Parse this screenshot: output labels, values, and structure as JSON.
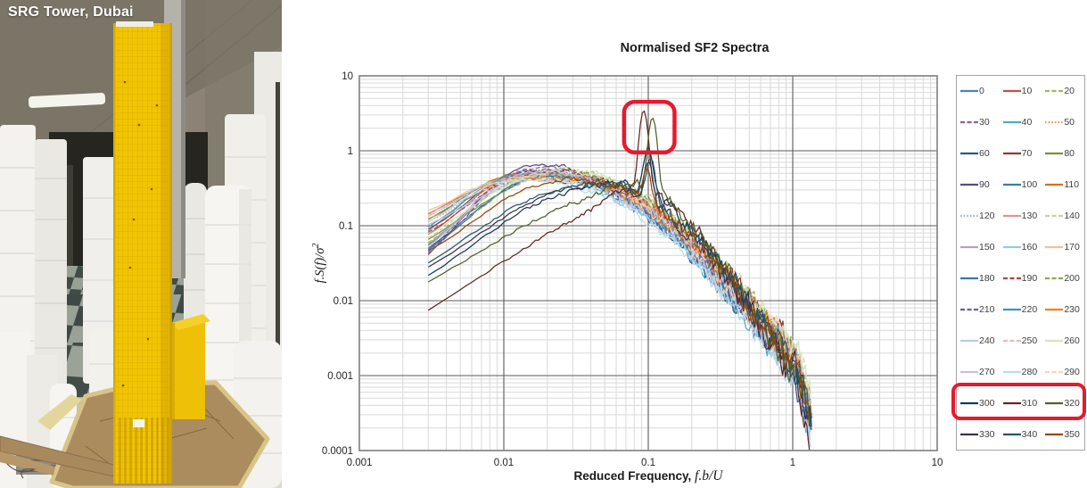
{
  "photo": {
    "caption": "SRG Tower, Dubai"
  },
  "chart": {
    "title": "Normalised SF2 Spectra",
    "xlabel_prefix": "Reduced Frequency, ",
    "xlabel_math": "f.b/U",
    "ylabel_math": "f.S(f)/σ",
    "ylabel_sup": "2"
  },
  "chart_data": {
    "type": "line",
    "title": "Normalised SF2 Spectra",
    "xlabel": "Reduced Frequency, f.b/U",
    "ylabel": "f.S(f)/σ2",
    "xscale": "log",
    "yscale": "log",
    "xlim": [
      0.001,
      10
    ],
    "ylim": [
      0.0001,
      10
    ],
    "x_ticks": [
      "0.001",
      "0.01",
      "0.1",
      "1",
      "10"
    ],
    "y_ticks": [
      "10",
      "1",
      "0.1",
      "0.01",
      "0.001",
      "0.0001"
    ],
    "grid": "log major+minor",
    "legend_position": "right, 3 columns, wind directions 0-350 deg in 10 deg steps",
    "description": "36 normalised force spectra curves; all rise from ~0.003 reduced frequency to a broad hump ~0.3-0.6 near 0.01-0.03, then decay noisily to ~0.0003-0.001 at ~1.3. Directions 310 and 320 show a sharp resonant peak near 0.1 (values ~3 and ~2.5), highlighted with a red box; legend row 300/310/320 also highlighted in red.",
    "annotations": [
      {
        "type": "box",
        "target": "spectral-peak",
        "x_range": [
          0.068,
          0.152
        ],
        "y_range": [
          0.95,
          4.5
        ],
        "color": "#e8192d"
      },
      {
        "type": "box",
        "target": "legend-row-300-310-320",
        "color": "#e8192d"
      }
    ],
    "series": [
      {
        "name": "0",
        "color": "#4F81BD",
        "dash": "solid",
        "start": [
          0.003,
          0.055
        ],
        "hump": [
          0.013,
          0.42
        ],
        "mid": [
          0.1,
          0.16
        ],
        "end": [
          1.28,
          0.0009
        ],
        "res": null
      },
      {
        "name": "10",
        "color": "#C0504D",
        "dash": "solid",
        "start": [
          0.003,
          0.075
        ],
        "hump": [
          0.012,
          0.46
        ],
        "mid": [
          0.1,
          0.18
        ],
        "end": [
          1.33,
          0.001
        ],
        "res": null
      },
      {
        "name": "20",
        "color": "#9BBB59",
        "dash": "dash",
        "start": [
          0.003,
          0.06
        ],
        "hump": [
          0.016,
          0.5
        ],
        "mid": [
          0.1,
          0.22
        ],
        "end": [
          1.3,
          0.0012
        ],
        "res": null
      },
      {
        "name": "30",
        "color": "#8064A2",
        "dash": "dash",
        "start": [
          0.003,
          0.045
        ],
        "hump": [
          0.013,
          0.55
        ],
        "mid": [
          0.1,
          0.15
        ],
        "end": [
          1.36,
          0.0008
        ],
        "res": null
      },
      {
        "name": "40",
        "color": "#4BACC6",
        "dash": "solid",
        "start": [
          0.003,
          0.085
        ],
        "hump": [
          0.011,
          0.48
        ],
        "mid": [
          0.1,
          0.14
        ],
        "end": [
          1.26,
          0.0007
        ],
        "res": null
      },
      {
        "name": "50",
        "color": "#F79646",
        "dash": "dot",
        "start": [
          0.003,
          0.11
        ],
        "hump": [
          0.012,
          0.44
        ],
        "mid": [
          0.1,
          0.17
        ],
        "end": [
          1.32,
          0.0011
        ],
        "res": null
      },
      {
        "name": "60",
        "color": "#2C5985",
        "dash": "solid",
        "start": [
          0.003,
          0.05
        ],
        "hump": [
          0.015,
          0.4
        ],
        "mid": [
          0.1,
          0.13
        ],
        "end": [
          1.29,
          0.0006
        ],
        "res": null
      },
      {
        "name": "70",
        "color": "#953735",
        "dash": "solid",
        "start": [
          0.003,
          0.09
        ],
        "hump": [
          0.014,
          0.52
        ],
        "mid": [
          0.1,
          0.19
        ],
        "end": [
          1.35,
          0.0013
        ],
        "res": null
      },
      {
        "name": "80",
        "color": "#76923C",
        "dash": "solid",
        "start": [
          0.003,
          0.065
        ],
        "hump": [
          0.018,
          0.47
        ],
        "mid": [
          0.1,
          0.21
        ],
        "end": [
          1.27,
          0.001
        ],
        "res": null
      },
      {
        "name": "90",
        "color": "#5F497A",
        "dash": "solid",
        "start": [
          0.003,
          0.04
        ],
        "hump": [
          0.013,
          0.58
        ],
        "mid": [
          0.1,
          0.16
        ],
        "end": [
          1.34,
          0.0008
        ],
        "res": null
      },
      {
        "name": "100",
        "color": "#31849B",
        "dash": "solid",
        "start": [
          0.003,
          0.12
        ],
        "hump": [
          0.011,
          0.45
        ],
        "mid": [
          0.1,
          0.15
        ],
        "end": [
          1.31,
          0.0009
        ],
        "res": null
      },
      {
        "name": "110",
        "color": "#E36C09",
        "dash": "solid",
        "start": [
          0.003,
          0.14
        ],
        "hump": [
          0.012,
          0.5
        ],
        "mid": [
          0.1,
          0.18
        ],
        "end": [
          1.28,
          0.0012
        ],
        "res": null
      },
      {
        "name": "120",
        "color": "#95B3D7",
        "dash": "dot",
        "start": [
          0.003,
          0.1
        ],
        "hump": [
          0.014,
          0.43
        ],
        "mid": [
          0.1,
          0.14
        ],
        "end": [
          1.37,
          0.0007
        ],
        "res": null
      },
      {
        "name": "130",
        "color": "#D99694",
        "dash": "solid",
        "start": [
          0.003,
          0.15
        ],
        "hump": [
          0.013,
          0.48
        ],
        "mid": [
          0.1,
          0.2
        ],
        "end": [
          1.3,
          0.0011
        ],
        "res": null
      },
      {
        "name": "140",
        "color": "#C3D69B",
        "dash": "dash",
        "start": [
          0.003,
          0.07
        ],
        "hump": [
          0.017,
          0.52
        ],
        "mid": [
          0.1,
          0.24
        ],
        "end": [
          1.33,
          0.0014
        ],
        "res": null
      },
      {
        "name": "150",
        "color": "#B2A1C7",
        "dash": "solid",
        "start": [
          0.003,
          0.055
        ],
        "hump": [
          0.012,
          0.46
        ],
        "mid": [
          0.1,
          0.17
        ],
        "end": [
          1.26,
          0.0009
        ],
        "res": null
      },
      {
        "name": "160",
        "color": "#92CDDC",
        "dash": "solid",
        "start": [
          0.003,
          0.13
        ],
        "hump": [
          0.01,
          0.42
        ],
        "mid": [
          0.1,
          0.13
        ],
        "end": [
          1.35,
          0.0006
        ],
        "res": null
      },
      {
        "name": "170",
        "color": "#FABF8F",
        "dash": "solid",
        "start": [
          0.003,
          0.16
        ],
        "hump": [
          0.012,
          0.45
        ],
        "mid": [
          0.1,
          0.16
        ],
        "end": [
          1.29,
          0.001
        ],
        "res": null
      },
      {
        "name": "180",
        "color": "#3E74AC",
        "dash": "solid",
        "start": [
          0.003,
          0.048
        ],
        "hump": [
          0.016,
          0.44
        ],
        "mid": [
          0.1,
          0.15
        ],
        "end": [
          1.32,
          0.0008
        ],
        "res": null
      },
      {
        "name": "190",
        "color": "#AD443B",
        "dash": "dash",
        "start": [
          0.003,
          0.08
        ],
        "hump": [
          0.014,
          0.49
        ],
        "mid": [
          0.1,
          0.18
        ],
        "end": [
          1.36,
          0.0011
        ],
        "res": null
      },
      {
        "name": "200",
        "color": "#8CAC52",
        "dash": "dash",
        "start": [
          0.003,
          0.058
        ],
        "hump": [
          0.019,
          0.46
        ],
        "mid": [
          0.1,
          0.2
        ],
        "end": [
          1.27,
          0.0012
        ],
        "res": null
      },
      {
        "name": "210",
        "color": "#75599E",
        "dash": "dash",
        "start": [
          0.003,
          0.042
        ],
        "hump": [
          0.014,
          0.52
        ],
        "mid": [
          0.1,
          0.14
        ],
        "end": [
          1.31,
          0.0007
        ],
        "res": null
      },
      {
        "name": "220",
        "color": "#4193BE",
        "dash": "solid",
        "start": [
          0.003,
          0.095
        ],
        "hump": [
          0.012,
          0.47
        ],
        "mid": [
          0.1,
          0.15
        ],
        "end": [
          1.34,
          0.0009
        ],
        "res": null
      },
      {
        "name": "230",
        "color": "#F0831E",
        "dash": "solid",
        "start": [
          0.003,
          0.125
        ],
        "hump": [
          0.013,
          0.43
        ],
        "mid": [
          0.1,
          0.17
        ],
        "end": [
          1.28,
          0.001
        ],
        "res": null
      },
      {
        "name": "240",
        "color": "#B8CCE4",
        "dash": "solid",
        "start": [
          0.003,
          0.105
        ],
        "hump": [
          0.015,
          0.41
        ],
        "mid": [
          0.1,
          0.13
        ],
        "end": [
          1.33,
          0.0006
        ],
        "res": null
      },
      {
        "name": "250",
        "color": "#E6B9B8",
        "dash": "dash",
        "start": [
          0.003,
          0.145
        ],
        "hump": [
          0.012,
          0.44
        ],
        "mid": [
          0.1,
          0.19
        ],
        "end": [
          1.3,
          0.0012
        ],
        "res": null
      },
      {
        "name": "260",
        "color": "#D7E4BC",
        "dash": "solid",
        "start": [
          0.003,
          0.075
        ],
        "hump": [
          0.018,
          0.5
        ],
        "mid": [
          0.1,
          0.22
        ],
        "end": [
          1.37,
          0.0013
        ],
        "res": null
      },
      {
        "name": "270",
        "color": "#CCC0DA",
        "dash": "solid",
        "start": [
          0.003,
          0.05
        ],
        "hump": [
          0.013,
          0.48
        ],
        "mid": [
          0.1,
          0.15
        ],
        "end": [
          1.26,
          0.0008
        ],
        "res": null
      },
      {
        "name": "280",
        "color": "#B7DEE8",
        "dash": "solid",
        "start": [
          0.003,
          0.115
        ],
        "hump": [
          0.011,
          0.4
        ],
        "mid": [
          0.1,
          0.12
        ],
        "end": [
          1.32,
          0.0006
        ],
        "res": null
      },
      {
        "name": "290",
        "color": "#FCD5B4",
        "dash": "dash",
        "start": [
          0.003,
          0.135
        ],
        "hump": [
          0.013,
          0.42
        ],
        "mid": [
          0.1,
          0.16
        ],
        "end": [
          1.29,
          0.0009
        ],
        "res": null
      },
      {
        "name": "300",
        "color": "#17375E",
        "dash": "solid",
        "start": [
          0.003,
          0.022
        ],
        "hump": [
          0.024,
          0.26
        ],
        "mid": [
          0.1,
          0.28
        ],
        "end": [
          1.35,
          0.0007
        ],
        "res": [
          0.1,
          0.8
        ]
      },
      {
        "name": "310",
        "color": "#632523",
        "dash": "solid",
        "start": [
          0.003,
          0.0075
        ],
        "hump": [
          0.035,
          0.14
        ],
        "mid": [
          0.1,
          0.3
        ],
        "end": [
          1.31,
          0.0005
        ],
        "res": [
          0.093,
          3.1
        ]
      },
      {
        "name": "320",
        "color": "#4F6228",
        "dash": "solid",
        "start": [
          0.003,
          0.018
        ],
        "hump": [
          0.03,
          0.2
        ],
        "mid": [
          0.1,
          0.32
        ],
        "end": [
          1.34,
          0.0006
        ],
        "res": [
          0.107,
          2.45
        ]
      },
      {
        "name": "330",
        "color": "#3F3151",
        "dash": "solid",
        "start": [
          0.003,
          0.028
        ],
        "hump": [
          0.026,
          0.3
        ],
        "mid": [
          0.1,
          0.22
        ],
        "end": [
          1.28,
          0.0007
        ],
        "res": [
          0.1,
          0.5
        ]
      },
      {
        "name": "340",
        "color": "#215968",
        "dash": "solid",
        "start": [
          0.003,
          0.032
        ],
        "hump": [
          0.024,
          0.32
        ],
        "mid": [
          0.1,
          0.24
        ],
        "end": [
          1.33,
          0.0008
        ],
        "res": [
          0.104,
          0.55
        ]
      },
      {
        "name": "350",
        "color": "#974806",
        "dash": "solid",
        "start": [
          0.003,
          0.045
        ],
        "hump": [
          0.02,
          0.38
        ],
        "mid": [
          0.1,
          0.2
        ],
        "end": [
          1.3,
          0.0009
        ],
        "res": [
          0.098,
          0.4
        ]
      }
    ]
  },
  "legend": {
    "highlighted_entries": [
      "300",
      "310",
      "320"
    ]
  }
}
